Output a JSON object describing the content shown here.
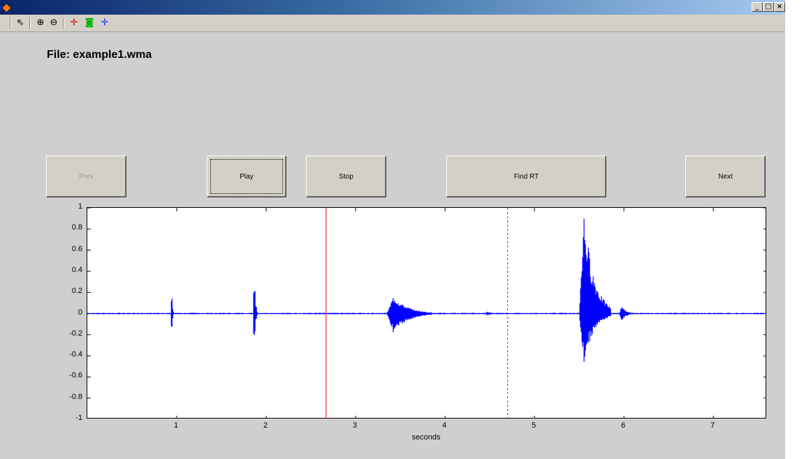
{
  "window": {
    "title": "",
    "minimize_glyph": "_",
    "maximize_glyph": "□",
    "close_glyph": "×"
  },
  "toolbar": {
    "tools": [
      {
        "name": "pointer-icon",
        "glyph": "⇖",
        "color": "#000000"
      },
      {
        "name": "zoom-in-icon",
        "glyph": "⊕",
        "color": "#000000"
      },
      {
        "name": "zoom-out-icon",
        "glyph": "⊖",
        "color": "#000000"
      },
      {
        "name": "pan-x-icon",
        "glyph": "✛",
        "color": "#e00000"
      },
      {
        "name": "reset-icon",
        "glyph": "◙",
        "color": "#00b000"
      },
      {
        "name": "pan-y-icon",
        "glyph": "✛",
        "color": "#0030ff"
      }
    ]
  },
  "file_label": "File: example1.wma",
  "buttons": {
    "prev": "Prev",
    "play": "Play",
    "stop": "Stop",
    "find_rt": "Find RT",
    "next": "Next"
  },
  "chart_data": {
    "type": "line",
    "title": "",
    "xlabel": "seconds",
    "ylabel": "",
    "xlim": [
      0,
      7.6
    ],
    "ylim": [
      -1,
      1
    ],
    "x_ticks": [
      "1",
      "2",
      "3",
      "4",
      "5",
      "6",
      "7"
    ],
    "y_ticks": [
      "1",
      "0.8",
      "0.6",
      "0.4",
      "0.2",
      "0",
      "-0.2",
      "-0.4",
      "-0.6",
      "-0.8",
      "-1"
    ],
    "series": [
      {
        "color": "#0000ff",
        "events": [
          {
            "t": 0.94,
            "peak": 0.16,
            "trough": -0.15,
            "dur": 0.02
          },
          {
            "t": 1.86,
            "peak": 0.29,
            "trough": -0.22,
            "dur": 0.04
          },
          {
            "t": 3.35,
            "peak": 0.17,
            "trough": -0.19,
            "dur": 0.5
          },
          {
            "t": 4.45,
            "peak": 0.02,
            "trough": -0.02,
            "dur": 0.15
          },
          {
            "t": 5.5,
            "peak": 1.0,
            "trough": -0.48,
            "dur": 0.35
          },
          {
            "t": 5.95,
            "peak": 0.08,
            "trough": -0.08,
            "dur": 0.15
          }
        ]
      }
    ],
    "markers": [
      {
        "x": 2.67,
        "style": "solid",
        "color": "#ff0000"
      },
      {
        "x": 4.7,
        "style": "dashed",
        "color": "#ff0000"
      }
    ]
  }
}
